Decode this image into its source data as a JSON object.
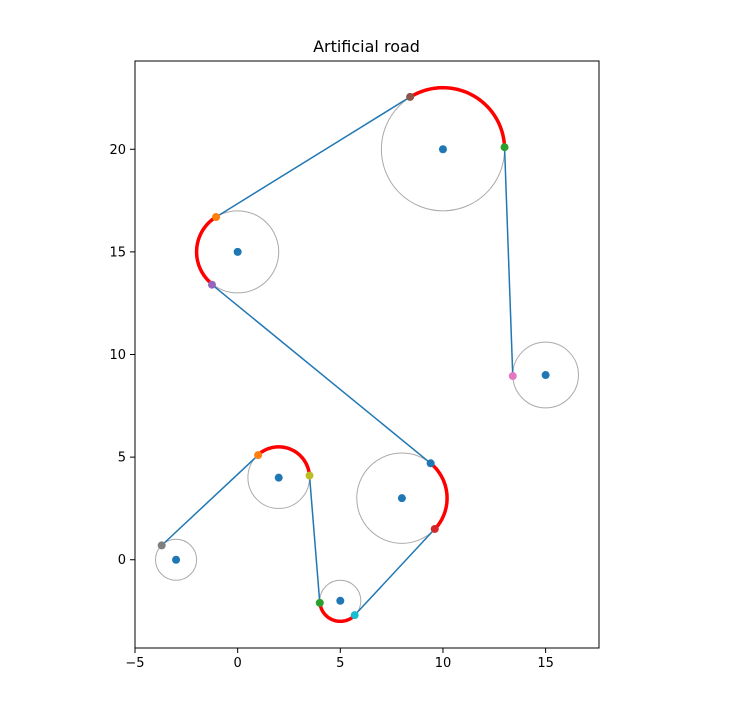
{
  "chart_data": {
    "type": "scatter",
    "title": "Artificial road",
    "xlabel": "",
    "ylabel": "",
    "xlim": [
      -5,
      17.6
    ],
    "ylim": [
      -4.3,
      24.3
    ],
    "xticks": [
      -5,
      0,
      5,
      10,
      15
    ],
    "yticks": [
      0,
      5,
      10,
      15,
      20
    ],
    "tick_labels_x": [
      "−5",
      "0",
      "5",
      "10",
      "15"
    ],
    "tick_labels_y": [
      "0",
      "5",
      "10",
      "15",
      "20"
    ],
    "grid": false,
    "colors": {
      "path_line": "#1f77b4",
      "arc": "#ff0000",
      "circle": "#aaaaaa",
      "center": "#1f77b4"
    },
    "circles": [
      {
        "cx": -3,
        "cy": 0,
        "r": 1
      },
      {
        "cx": 2,
        "cy": 4,
        "r": 1.5
      },
      {
        "cx": 5,
        "cy": -2,
        "r": 1
      },
      {
        "cx": 8,
        "cy": 3,
        "r": 2.2
      },
      {
        "cx": 0,
        "cy": 15,
        "r": 2
      },
      {
        "cx": 10,
        "cy": 20,
        "r": 3
      },
      {
        "cx": 15,
        "cy": 9,
        "r": 1.6
      }
    ],
    "path_segments": [
      {
        "from": [
          -3.7,
          0.7
        ],
        "to": [
          1.0,
          5.1
        ]
      },
      {
        "from": [
          3.5,
          4.1
        ],
        "to": [
          4.0,
          -2.1
        ]
      },
      {
        "from": [
          5.7,
          -2.7
        ],
        "to": [
          9.6,
          1.5
        ]
      },
      {
        "from": [
          9.4,
          4.7
        ],
        "to": [
          -1.25,
          13.4
        ]
      },
      {
        "from": [
          -1.05,
          16.7
        ],
        "to": [
          8.4,
          22.55
        ]
      },
      {
        "from": [
          13.0,
          20.1
        ],
        "to": [
          13.4,
          8.95
        ]
      }
    ],
    "arcs": [
      {
        "cx": 2,
        "cy": 4,
        "r": 1.5,
        "from": [
          1.0,
          5.1
        ],
        "to": [
          3.5,
          4.1
        ],
        "direction": "cw"
      },
      {
        "cx": 5,
        "cy": -2,
        "r": 1,
        "from": [
          4.0,
          -2.1
        ],
        "to": [
          5.7,
          -2.7
        ],
        "direction": "ccw"
      },
      {
        "cx": 8,
        "cy": 3,
        "r": 2.2,
        "from": [
          9.6,
          1.5
        ],
        "to": [
          9.4,
          4.7
        ],
        "direction": "ccw"
      },
      {
        "cx": 0,
        "cy": 15,
        "r": 2,
        "from": [
          -1.25,
          13.4
        ],
        "to": [
          -1.05,
          16.7
        ],
        "direction": "cw"
      },
      {
        "cx": 10,
        "cy": 20,
        "r": 3,
        "from": [
          8.4,
          22.55
        ],
        "to": [
          13.0,
          20.1
        ],
        "direction": "cw"
      }
    ],
    "tangent_points": [
      {
        "x": -3.7,
        "y": 0.7,
        "color": "#7f7f7f"
      },
      {
        "x": 1.0,
        "y": 5.1,
        "color": "#ff7f0e"
      },
      {
        "x": 3.5,
        "y": 4.1,
        "color": "#bcbd22"
      },
      {
        "x": 4.0,
        "y": -2.1,
        "color": "#2ca02c"
      },
      {
        "x": 5.7,
        "y": -2.7,
        "color": "#17becf"
      },
      {
        "x": 9.6,
        "y": 1.5,
        "color": "#d62728"
      },
      {
        "x": 9.4,
        "y": 4.7,
        "color": "#1f77b4"
      },
      {
        "x": -1.25,
        "y": 13.4,
        "color": "#9467bd"
      },
      {
        "x": -1.05,
        "y": 16.7,
        "color": "#ff7f0e"
      },
      {
        "x": 8.4,
        "y": 22.55,
        "color": "#8c564b"
      },
      {
        "x": 13.0,
        "y": 20.1,
        "color": "#2ca02c"
      },
      {
        "x": 13.4,
        "y": 8.95,
        "color": "#e377c2"
      }
    ]
  }
}
